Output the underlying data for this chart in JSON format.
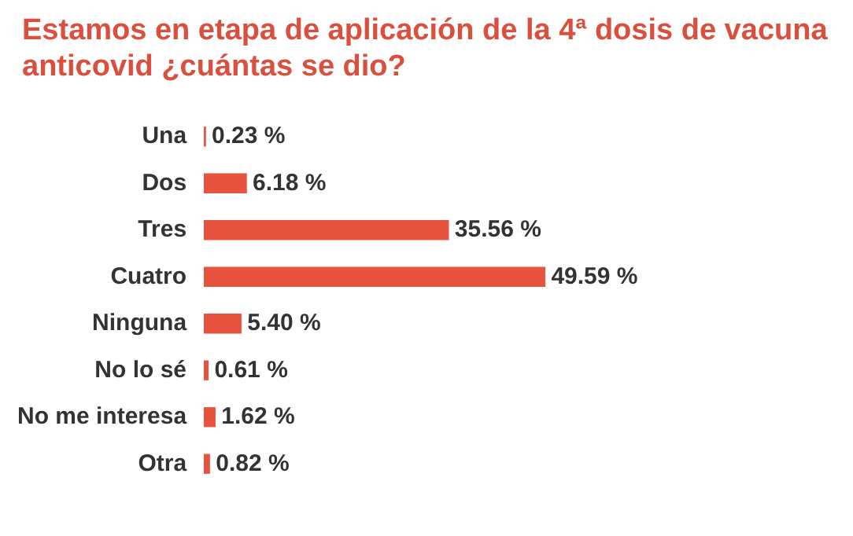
{
  "chart_data": {
    "type": "bar",
    "orientation": "horizontal",
    "title": "Estamos en etapa de aplicación de la 4ª dosis de vacuna anticovid ¿cuántas se dio?",
    "categories": [
      "Una",
      "Dos",
      "Tres",
      "Cuatro",
      "Ninguna",
      "No lo sé",
      "No me interesa",
      "Otra"
    ],
    "values": [
      0.23,
      6.18,
      35.56,
      49.59,
      5.4,
      0.61,
      1.62,
      0.82
    ],
    "value_labels": [
      "0.23 %",
      "6.18 %",
      "35.56 %",
      "49.59 %",
      "5.40 %",
      "0.61 %",
      "1.62 %",
      "0.82 %"
    ],
    "color": "#e8533f"
  }
}
